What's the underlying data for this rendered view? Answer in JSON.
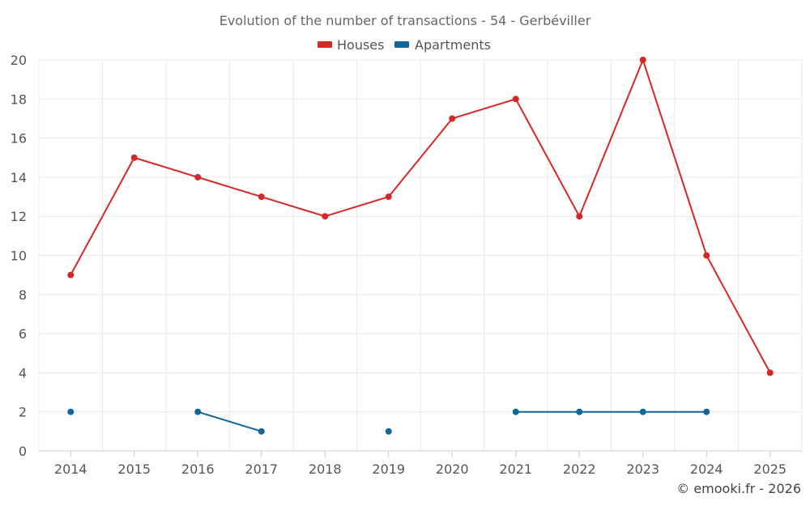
{
  "chart_data": {
    "type": "line",
    "title": "Evolution of the number of transactions - 54 - Gerbéviller",
    "categories": [
      "2014",
      "2015",
      "2016",
      "2017",
      "2018",
      "2019",
      "2020",
      "2021",
      "2022",
      "2023",
      "2024",
      "2025"
    ],
    "ylim": [
      0,
      20
    ],
    "yticks": [
      0,
      2,
      4,
      6,
      8,
      10,
      12,
      14,
      16,
      18,
      20
    ],
    "grid": true,
    "legend_position": "top-center",
    "series": [
      {
        "name": "Houses",
        "color": "#d62728",
        "values": [
          9,
          15,
          14,
          13,
          12,
          13,
          17,
          18,
          12,
          20,
          10,
          4
        ]
      },
      {
        "name": "Apartments",
        "color": "#0f6699",
        "values": [
          2,
          null,
          2,
          1,
          null,
          1,
          null,
          2,
          2,
          2,
          2,
          null
        ]
      }
    ],
    "credit": "© emooki.fr - 2026"
  }
}
